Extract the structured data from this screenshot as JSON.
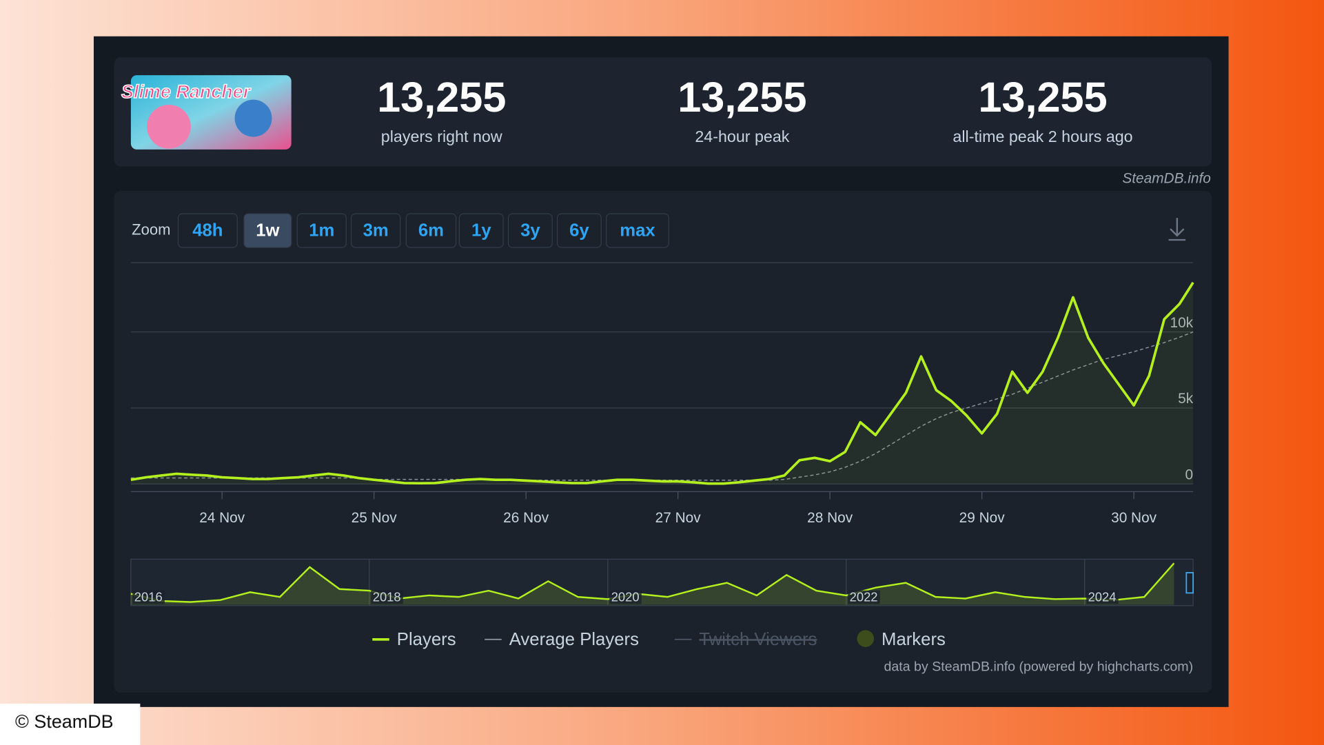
{
  "header": {
    "game_logo": "Slime Rancher",
    "stats": [
      {
        "value": "13,255",
        "caption": "players right now"
      },
      {
        "value": "13,255",
        "caption": "24-hour peak"
      },
      {
        "value": "13,255",
        "caption": "all-time peak 2 hours ago"
      }
    ],
    "watermark": "SteamDB.info"
  },
  "zoom": {
    "label": "Zoom",
    "buttons": [
      "48h",
      "1w",
      "1m",
      "3m",
      "6m",
      "1y",
      "3y",
      "6y",
      "max"
    ],
    "active": "1w"
  },
  "chart_data": {
    "type": "line",
    "x": [
      23.4,
      23.5,
      23.6,
      23.7,
      23.8,
      23.9,
      24.0,
      24.1,
      24.2,
      24.3,
      24.4,
      24.5,
      24.6,
      24.7,
      24.8,
      24.9,
      25.0,
      25.1,
      25.2,
      25.3,
      25.4,
      25.5,
      25.6,
      25.7,
      25.8,
      25.9,
      26.0,
      26.1,
      26.2,
      26.3,
      26.4,
      26.5,
      26.6,
      26.7,
      26.8,
      26.9,
      27.0,
      27.1,
      27.2,
      27.3,
      27.4,
      27.5,
      27.6,
      27.7,
      27.8,
      27.9,
      28.0,
      28.1,
      28.2,
      28.3,
      28.4,
      28.5,
      28.6,
      28.7,
      28.8,
      28.9,
      29.0,
      29.1,
      29.2,
      29.3,
      29.4,
      29.5,
      29.6,
      29.7,
      29.8,
      29.9,
      30.0,
      30.1,
      30.2,
      30.3,
      30.39
    ],
    "series": [
      {
        "name": "Players",
        "color": "#b4f01e",
        "values": [
          280,
          440,
          560,
          670,
          610,
          560,
          440,
          390,
          330,
          330,
          390,
          440,
          560,
          670,
          560,
          390,
          280,
          170,
          60,
          50,
          60,
          170,
          280,
          330,
          280,
          280,
          220,
          170,
          110,
          60,
          60,
          170,
          280,
          280,
          220,
          170,
          170,
          110,
          30,
          30,
          110,
          220,
          330,
          560,
          1560,
          1720,
          1500,
          2110,
          4060,
          3220,
          4610,
          6000,
          8390,
          6170,
          5450,
          4500,
          3330,
          4610,
          7390,
          6000,
          7390,
          9610,
          12280,
          9610,
          7950,
          6560,
          5170,
          7110,
          10840,
          11840,
          13255
        ]
      },
      {
        "name": "Average Players",
        "color": "#8a929c",
        "dashed": true,
        "values": [
          400,
          400,
          400,
          400,
          400,
          400,
          400,
          400,
          400,
          400,
          400,
          400,
          400,
          400,
          400,
          400,
          300,
          300,
          300,
          300,
          300,
          300,
          300,
          300,
          300,
          300,
          250,
          250,
          250,
          250,
          250,
          250,
          250,
          250,
          250,
          250,
          250,
          250,
          250,
          250,
          250,
          250,
          250,
          300,
          450,
          600,
          800,
          1100,
          1500,
          2000,
          2600,
          3200,
          3800,
          4300,
          4700,
          5000,
          5300,
          5600,
          5900,
          6300,
          6700,
          7100,
          7500,
          7850,
          8200,
          8450,
          8700,
          9000,
          9300,
          9650,
          10000
        ]
      }
    ],
    "legend_extra": [
      {
        "name": "Twitch Viewers",
        "color": "#4b5563",
        "disabled": true
      },
      {
        "name": "Markers",
        "color": "#3d4d1c"
      }
    ],
    "xlim": [
      23.4,
      30.39
    ],
    "xticks": [
      {
        "value": 24,
        "label": "24 Nov"
      },
      {
        "value": 25,
        "label": "25 Nov"
      },
      {
        "value": 26,
        "label": "26 Nov"
      },
      {
        "value": 27,
        "label": "27 Nov"
      },
      {
        "value": 28,
        "label": "28 Nov"
      },
      {
        "value": 29,
        "label": "29 Nov"
      },
      {
        "value": 30,
        "label": "30 Nov"
      }
    ],
    "ylim": [
      0,
      14500
    ],
    "yticks": [
      0,
      {
        "value": 5000,
        "label": "5k"
      },
      {
        "value": 10000,
        "label": "10k"
      }
    ],
    "grid": true,
    "navigator": {
      "x": [
        2016.0,
        2016.25,
        2016.5,
        2016.75,
        2017.0,
        2017.25,
        2017.5,
        2017.75,
        2018.0,
        2018.25,
        2018.5,
        2018.75,
        2019.0,
        2019.25,
        2019.5,
        2019.75,
        2020.0,
        2020.25,
        2020.5,
        2020.75,
        2021.0,
        2021.25,
        2021.5,
        2021.75,
        2022.0,
        2022.25,
        2022.5,
        2022.75,
        2023.0,
        2023.25,
        2023.5,
        2023.75,
        2024.0,
        2024.25,
        2024.5,
        2024.75
      ],
      "values": [
        3500,
        1200,
        900,
        1500,
        4000,
        2500,
        12000,
        5000,
        4500,
        2000,
        3000,
        2500,
        4500,
        2000,
        7500,
        2500,
        1800,
        3500,
        2500,
        5000,
        7000,
        3000,
        9500,
        4500,
        3000,
        5500,
        7000,
        2500,
        2000,
        4000,
        2500,
        1800,
        2000,
        1500,
        2500,
        13255
      ],
      "xlim": [
        2016,
        2024.91
      ],
      "ylim": [
        0,
        14000
      ],
      "xticks": [
        2016,
        2018,
        2020,
        2022,
        2024
      ]
    },
    "credit": "data by SteamDB.info (powered by highcharts.com)"
  },
  "footer": {
    "copyright": "© SteamDB"
  }
}
